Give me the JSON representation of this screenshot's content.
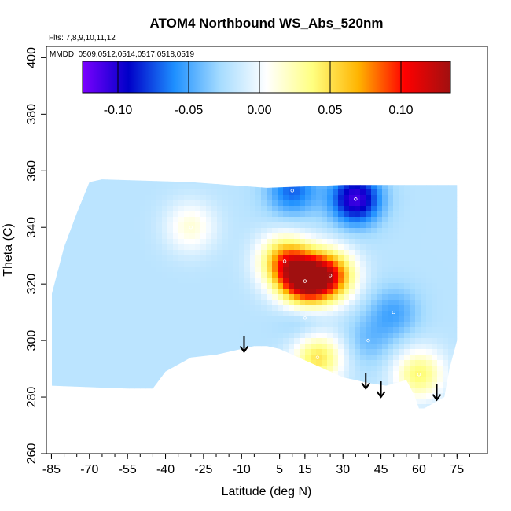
{
  "chart_data": {
    "type": "heatmap",
    "title": "ATOM4 Northbound WS_Abs_520nm",
    "annotations": [
      "Flts: 7,8,9,10,11,12",
      "MMDD: 0509,0512,0514,0517,0518,0519"
    ],
    "xlabel": "Latitude (deg N)",
    "ylabel": "Theta (C)",
    "xlim": [
      -87,
      87
    ],
    "ylim": [
      260,
      404
    ],
    "x_ticks": [
      -85,
      -70,
      -55,
      -40,
      -25,
      -10,
      5,
      15,
      30,
      45,
      60,
      75
    ],
    "y_ticks": [
      260,
      280,
      300,
      320,
      340,
      360,
      380,
      400
    ],
    "colorbar": {
      "range": [
        -0.125,
        0.135
      ],
      "ticks": [
        -0.1,
        -0.05,
        0.0,
        0.05,
        0.1
      ],
      "tick_labels": [
        "-0.10",
        "-0.05",
        "0.00",
        "0.05",
        "0.10"
      ],
      "colors": [
        "#7b00ff",
        "#0000c8",
        "#1e90ff",
        "#a6dcff",
        "#ffffff",
        "#ffff80",
        "#ffb400",
        "#ff0000",
        "#a01010"
      ]
    },
    "data_extent": {
      "lat": [
        -85,
        75
      ],
      "theta_bottom_by_lat": [
        [
          -85,
          284
        ],
        [
          -55,
          283
        ],
        [
          -45,
          283
        ],
        [
          -40,
          289
        ],
        [
          -30,
          294
        ],
        [
          -20,
          295
        ],
        [
          -10,
          297
        ],
        [
          -5,
          298
        ],
        [
          0,
          298
        ],
        [
          5,
          297
        ],
        [
          10,
          295
        ],
        [
          20,
          291
        ],
        [
          30,
          287
        ],
        [
          40,
          285
        ],
        [
          47,
          284
        ],
        [
          55,
          286
        ],
        [
          58,
          281
        ],
        [
          60,
          276
        ],
        [
          62,
          276
        ],
        [
          70,
          280
        ],
        [
          72,
          290
        ],
        [
          75,
          300
        ]
      ],
      "theta_top_by_lat": [
        [
          -85,
          316
        ],
        [
          -80,
          333
        ],
        [
          -75,
          345
        ],
        [
          -70,
          356
        ],
        [
          -65,
          357
        ],
        [
          -30,
          356
        ],
        [
          0,
          354
        ],
        [
          30,
          355
        ],
        [
          75,
          355
        ]
      ]
    },
    "features": [
      {
        "lat": 15,
        "theta": 321,
        "value": 0.12,
        "type": "max"
      },
      {
        "lat": 7,
        "theta": 328,
        "value": 0.07
      },
      {
        "lat": 25,
        "theta": 323,
        "value": 0.08
      },
      {
        "lat": 20,
        "theta": 294,
        "value": 0.05
      },
      {
        "lat": 60,
        "theta": 288,
        "value": 0.04
      },
      {
        "lat": 35,
        "theta": 350,
        "value": -0.11,
        "type": "min"
      },
      {
        "lat": 10,
        "theta": 353,
        "value": -0.07
      },
      {
        "lat": 15,
        "theta": 308,
        "value": -0.04
      },
      {
        "lat": 50,
        "theta": 310,
        "value": -0.05
      },
      {
        "lat": 40,
        "theta": 300,
        "value": -0.04
      },
      {
        "lat": -30,
        "theta": 340,
        "value": 0.015
      }
    ],
    "arrows": [
      {
        "lat": -9,
        "theta": 296
      },
      {
        "lat": 39,
        "theta": 283
      },
      {
        "lat": 45,
        "theta": 280
      },
      {
        "lat": 67,
        "theta": 279
      }
    ],
    "background_value": -0.02
  }
}
